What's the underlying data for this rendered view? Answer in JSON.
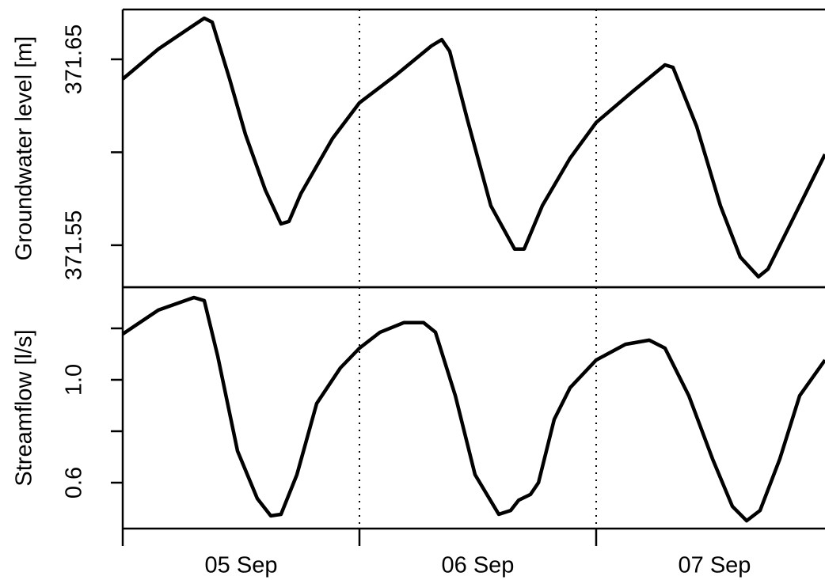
{
  "chart_data": [
    {
      "type": "line",
      "ylabel": "Groundwater level [m]",
      "color": "#000000",
      "xlim": [
        0,
        71.2
      ],
      "ylim": [
        371.5274,
        371.6768
      ],
      "yticks": [
        371.55,
        371.65
      ],
      "yticks_unlabeled": [
        371.6
      ],
      "vlines": [
        24,
        48
      ],
      "x": [
        0,
        3.61,
        6.82,
        8.27,
        9.07,
        10.84,
        12.44,
        14.45,
        16.05,
        16.86,
        18.06,
        21.27,
        24,
        27.69,
        31.3,
        32.35,
        33.15,
        34.92,
        37.32,
        39.73,
        40.7,
        42.54,
        45.35,
        48,
        51.77,
        54.98,
        55.79,
        58.2,
        60.6,
        62.61,
        64.46,
        65.42,
        67.83,
        71.2
      ],
      "values": [
        371.6394,
        371.6555,
        371.667,
        371.6721,
        371.67,
        371.6394,
        371.6096,
        371.5798,
        371.5615,
        371.5628,
        371.5777,
        371.6074,
        371.6266,
        371.6415,
        371.6572,
        371.6606,
        371.6543,
        371.6181,
        371.5713,
        371.5479,
        371.5479,
        371.5713,
        371.5968,
        371.616,
        371.633,
        371.647,
        371.6457,
        371.6138,
        371.5713,
        371.5436,
        371.533,
        371.5372,
        371.5628,
        371.5989
      ]
    },
    {
      "type": "line",
      "ylabel": "Streamflow [l/s]",
      "color": "#000000",
      "xlim": [
        0,
        71.2
      ],
      "ylim": [
        0.4215,
        1.36
      ],
      "yticks": [
        {
          "value": 0.6,
          "label": "0.6"
        },
        {
          "value": 1,
          "label": "1.0"
        }
      ],
      "yticks_unlabeled": [
        0.8,
        1.2
      ],
      "vlines": [
        24,
        48
      ],
      "xticks": [
        {
          "value": 12,
          "label": "05 Sep"
        },
        {
          "value": 36,
          "label": "06 Sep"
        },
        {
          "value": 60,
          "label": "07 Sep"
        }
      ],
      "xtick_marks": [
        0,
        24,
        48
      ],
      "x": [
        0,
        3.61,
        7.22,
        8.27,
        9.63,
        11.64,
        13.65,
        15.01,
        16.05,
        17.66,
        19.67,
        22.07,
        24,
        26.09,
        28.5,
        30.5,
        31.71,
        33.72,
        35.72,
        38.13,
        39.33,
        40.14,
        41.34,
        42.15,
        43.75,
        45.35,
        48,
        50.97,
        53.38,
        54.98,
        57.39,
        59.8,
        61.81,
        63.25,
        64.62,
        66.62,
        68.63,
        71.2
      ],
      "values": [
        1.178,
        1.271,
        1.32,
        1.308,
        1.092,
        0.723,
        0.538,
        0.471,
        0.477,
        0.631,
        0.908,
        1.046,
        1.123,
        1.185,
        1.222,
        1.222,
        1.185,
        0.938,
        0.631,
        0.477,
        0.492,
        0.532,
        0.554,
        0.6,
        0.846,
        0.969,
        1.077,
        1.138,
        1.154,
        1.123,
        0.938,
        0.692,
        0.508,
        0.452,
        0.492,
        0.692,
        0.938,
        1.077
      ]
    }
  ]
}
